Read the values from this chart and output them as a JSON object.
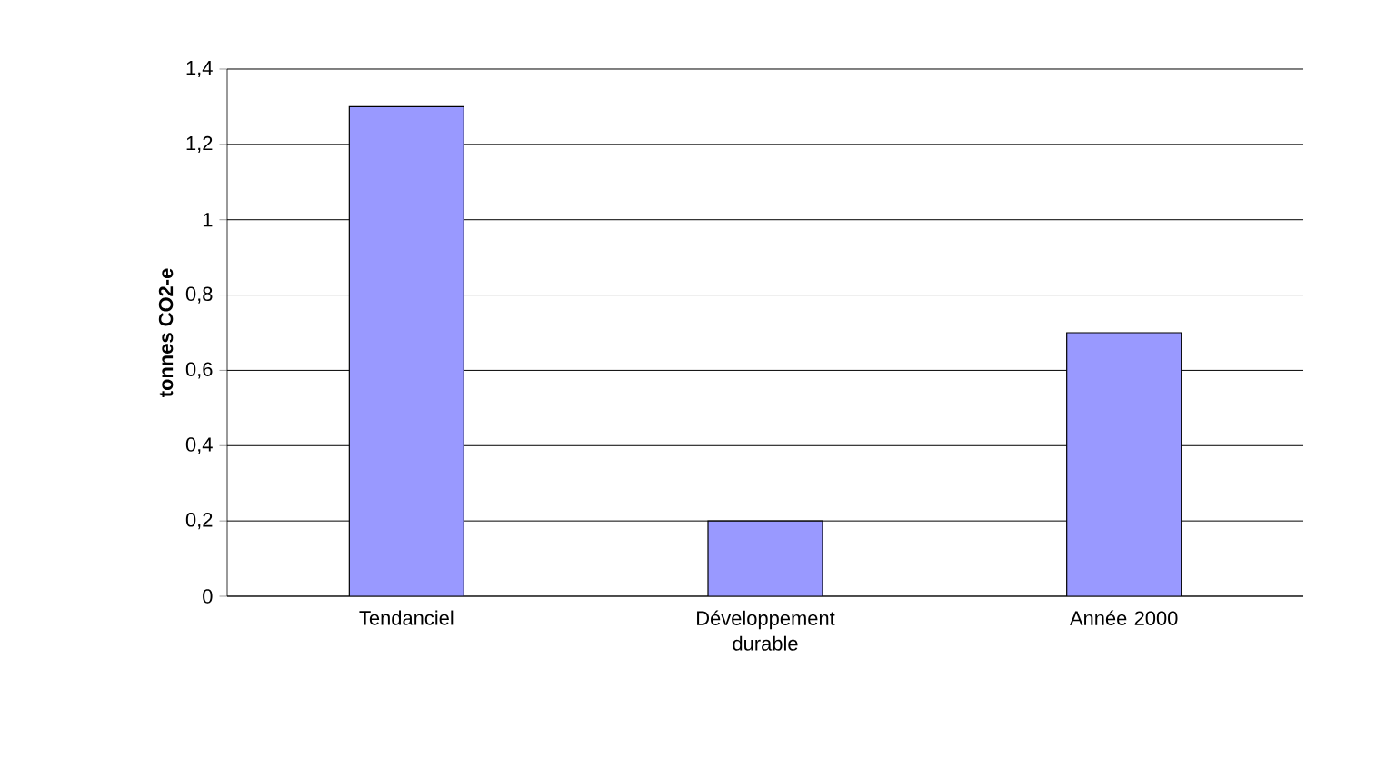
{
  "chart_data": {
    "type": "bar",
    "ylabel": "tonnes CO2-e",
    "categories": [
      "Tendanciel",
      "Développement durable",
      "Année 2000"
    ],
    "values": [
      1.3,
      0.2,
      0.7
    ],
    "color": "#9999ff",
    "ylim": [
      0,
      1.4
    ],
    "yticks": [
      {
        "value": 0,
        "label": "0"
      },
      {
        "value": 0.2,
        "label": "0,2"
      },
      {
        "value": 0.4,
        "label": "0,4"
      },
      {
        "value": 0.6,
        "label": "0,6"
      },
      {
        "value": 0.8,
        "label": "0,8"
      },
      {
        "value": 1,
        "label": "1"
      },
      {
        "value": 1.2,
        "label": "1,2"
      },
      {
        "value": 1.4,
        "label": "1,4"
      }
    ],
    "grid": "y"
  }
}
